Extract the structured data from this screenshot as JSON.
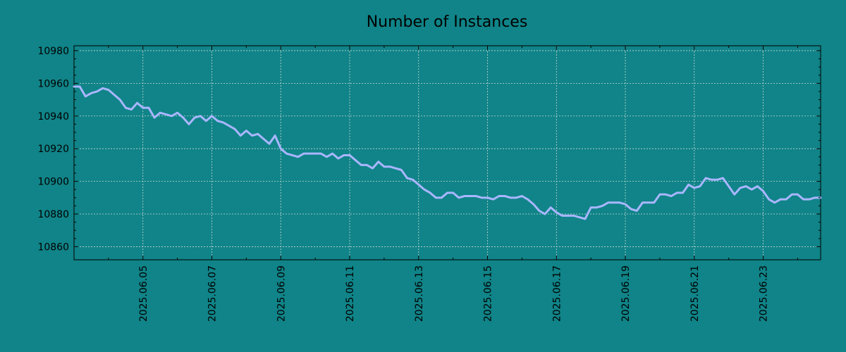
{
  "colors": {
    "background": "#108488",
    "plot_background": "#108488",
    "line": "#a9b6ff",
    "grid": "#c8d8d8",
    "axis": "#000000"
  },
  "chart_data": {
    "type": "line",
    "title": "Number of Instances",
    "xlabel": "",
    "ylabel": "",
    "grid": true,
    "legend": "none",
    "x_tick_labels": [
      "2025.06.05",
      "2025.06.07",
      "2025.06.09",
      "2025.06.11",
      "2025.06.13",
      "2025.06.15",
      "2025.06.17",
      "2025.06.19",
      "2025.06.21",
      "2025.06.23"
    ],
    "y_tick_labels": [
      "10860",
      "10880",
      "10900",
      "10920",
      "10940",
      "10960",
      "10980"
    ],
    "xlim": [
      "2025-06-03 00:00",
      "2025-06-24 16:00"
    ],
    "ylim": [
      10852,
      10983
    ],
    "series": [
      {
        "values": [
          [
            "2025-06-03 00:00",
            10958
          ],
          [
            "2025-06-03 04:00",
            10958
          ],
          [
            "2025-06-03 08:00",
            10952
          ],
          [
            "2025-06-03 12:00",
            10954
          ],
          [
            "2025-06-03 16:00",
            10955
          ],
          [
            "2025-06-03 20:00",
            10957
          ],
          [
            "2025-06-04 00:00",
            10956
          ],
          [
            "2025-06-04 04:00",
            10953
          ],
          [
            "2025-06-04 08:00",
            10950
          ],
          [
            "2025-06-04 12:00",
            10945
          ],
          [
            "2025-06-04 16:00",
            10944
          ],
          [
            "2025-06-04 20:00",
            10948
          ],
          [
            "2025-06-05 00:00",
            10945
          ],
          [
            "2025-06-05 04:00",
            10945
          ],
          [
            "2025-06-05 08:00",
            10939
          ],
          [
            "2025-06-05 12:00",
            10942
          ],
          [
            "2025-06-05 16:00",
            10941
          ],
          [
            "2025-06-05 20:00",
            10940
          ],
          [
            "2025-06-06 00:00",
            10942
          ],
          [
            "2025-06-06 04:00",
            10939
          ],
          [
            "2025-06-06 08:00",
            10935
          ],
          [
            "2025-06-06 12:00",
            10939
          ],
          [
            "2025-06-06 16:00",
            10940
          ],
          [
            "2025-06-06 20:00",
            10937
          ],
          [
            "2025-06-07 00:00",
            10940
          ],
          [
            "2025-06-07 04:00",
            10937
          ],
          [
            "2025-06-07 08:00",
            10936
          ],
          [
            "2025-06-07 12:00",
            10934
          ],
          [
            "2025-06-07 16:00",
            10932
          ],
          [
            "2025-06-07 20:00",
            10928
          ],
          [
            "2025-06-08 00:00",
            10931
          ],
          [
            "2025-06-08 04:00",
            10928
          ],
          [
            "2025-06-08 08:00",
            10929
          ],
          [
            "2025-06-08 12:00",
            10926
          ],
          [
            "2025-06-08 16:00",
            10923
          ],
          [
            "2025-06-08 20:00",
            10928
          ],
          [
            "2025-06-09 00:00",
            10920
          ],
          [
            "2025-06-09 04:00",
            10917
          ],
          [
            "2025-06-09 08:00",
            10916
          ],
          [
            "2025-06-09 12:00",
            10915
          ],
          [
            "2025-06-09 16:00",
            10917
          ],
          [
            "2025-06-09 20:00",
            10917
          ],
          [
            "2025-06-10 00:00",
            10917
          ],
          [
            "2025-06-10 04:00",
            10917
          ],
          [
            "2025-06-10 08:00",
            10915
          ],
          [
            "2025-06-10 12:00",
            10917
          ],
          [
            "2025-06-10 16:00",
            10914
          ],
          [
            "2025-06-10 20:00",
            10916
          ],
          [
            "2025-06-11 00:00",
            10916
          ],
          [
            "2025-06-11 04:00",
            10913
          ],
          [
            "2025-06-11 08:00",
            10910
          ],
          [
            "2025-06-11 12:00",
            10910
          ],
          [
            "2025-06-11 16:00",
            10908
          ],
          [
            "2025-06-11 20:00",
            10912
          ],
          [
            "2025-06-12 00:00",
            10909
          ],
          [
            "2025-06-12 04:00",
            10909
          ],
          [
            "2025-06-12 08:00",
            10908
          ],
          [
            "2025-06-12 12:00",
            10907
          ],
          [
            "2025-06-12 16:00",
            10902
          ],
          [
            "2025-06-12 20:00",
            10901
          ],
          [
            "2025-06-13 00:00",
            10898
          ],
          [
            "2025-06-13 04:00",
            10895
          ],
          [
            "2025-06-13 08:00",
            10893
          ],
          [
            "2025-06-13 12:00",
            10890
          ],
          [
            "2025-06-13 16:00",
            10890
          ],
          [
            "2025-06-13 20:00",
            10893
          ],
          [
            "2025-06-14 00:00",
            10893
          ],
          [
            "2025-06-14 04:00",
            10890
          ],
          [
            "2025-06-14 08:00",
            10891
          ],
          [
            "2025-06-14 12:00",
            10891
          ],
          [
            "2025-06-14 16:00",
            10891
          ],
          [
            "2025-06-14 20:00",
            10890
          ],
          [
            "2025-06-15 00:00",
            10890
          ],
          [
            "2025-06-15 04:00",
            10889
          ],
          [
            "2025-06-15 08:00",
            10891
          ],
          [
            "2025-06-15 12:00",
            10891
          ],
          [
            "2025-06-15 16:00",
            10890
          ],
          [
            "2025-06-15 20:00",
            10890
          ],
          [
            "2025-06-16 00:00",
            10891
          ],
          [
            "2025-06-16 04:00",
            10889
          ],
          [
            "2025-06-16 08:00",
            10886
          ],
          [
            "2025-06-16 12:00",
            10882
          ],
          [
            "2025-06-16 16:00",
            10880
          ],
          [
            "2025-06-16 20:00",
            10884
          ],
          [
            "2025-06-17 00:00",
            10881
          ],
          [
            "2025-06-17 04:00",
            10879
          ],
          [
            "2025-06-17 08:00",
            10879
          ],
          [
            "2025-06-17 12:00",
            10879
          ],
          [
            "2025-06-17 16:00",
            10878
          ],
          [
            "2025-06-17 20:00",
            10877
          ],
          [
            "2025-06-18 00:00",
            10884
          ],
          [
            "2025-06-18 04:00",
            10884
          ],
          [
            "2025-06-18 08:00",
            10885
          ],
          [
            "2025-06-18 12:00",
            10887
          ],
          [
            "2025-06-18 16:00",
            10887
          ],
          [
            "2025-06-18 20:00",
            10887
          ],
          [
            "2025-06-19 00:00",
            10886
          ],
          [
            "2025-06-19 04:00",
            10883
          ],
          [
            "2025-06-19 08:00",
            10882
          ],
          [
            "2025-06-19 12:00",
            10887
          ],
          [
            "2025-06-19 16:00",
            10887
          ],
          [
            "2025-06-19 20:00",
            10887
          ],
          [
            "2025-06-20 00:00",
            10892
          ],
          [
            "2025-06-20 04:00",
            10892
          ],
          [
            "2025-06-20 08:00",
            10891
          ],
          [
            "2025-06-20 12:00",
            10893
          ],
          [
            "2025-06-20 16:00",
            10893
          ],
          [
            "2025-06-20 20:00",
            10898
          ],
          [
            "2025-06-21 00:00",
            10896
          ],
          [
            "2025-06-21 04:00",
            10897
          ],
          [
            "2025-06-21 08:00",
            10902
          ],
          [
            "2025-06-21 12:00",
            10901
          ],
          [
            "2025-06-21 16:00",
            10901
          ],
          [
            "2025-06-21 20:00",
            10902
          ],
          [
            "2025-06-22 00:00",
            10897
          ],
          [
            "2025-06-22 04:00",
            10892
          ],
          [
            "2025-06-22 08:00",
            10896
          ],
          [
            "2025-06-22 12:00",
            10897
          ],
          [
            "2025-06-22 16:00",
            10895
          ],
          [
            "2025-06-22 20:00",
            10897
          ],
          [
            "2025-06-23 00:00",
            10894
          ],
          [
            "2025-06-23 04:00",
            10889
          ],
          [
            "2025-06-23 08:00",
            10887
          ],
          [
            "2025-06-23 12:00",
            10889
          ],
          [
            "2025-06-23 16:00",
            10889
          ],
          [
            "2025-06-23 20:00",
            10892
          ],
          [
            "2025-06-24 00:00",
            10892
          ],
          [
            "2025-06-24 04:00",
            10889
          ],
          [
            "2025-06-24 08:00",
            10889
          ],
          [
            "2025-06-24 12:00",
            10890
          ],
          [
            "2025-06-24 16:00",
            10890
          ]
        ]
      }
    ]
  }
}
